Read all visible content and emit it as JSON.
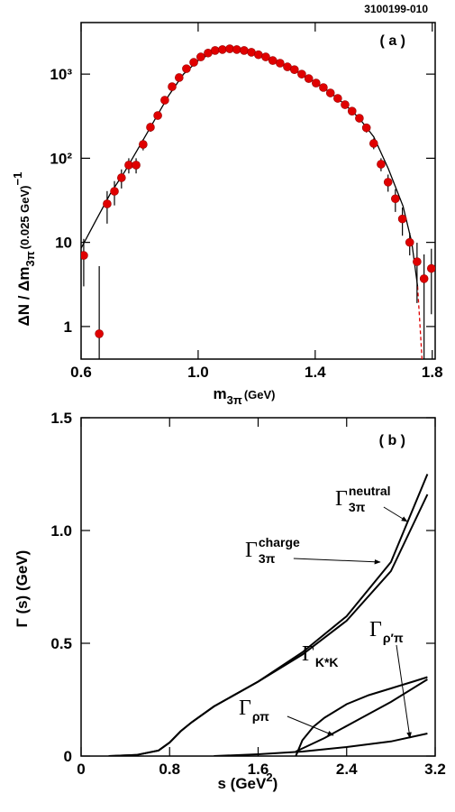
{
  "chart_data": [
    {
      "type": "scatter",
      "figure_id": "3100199-010",
      "annotation": "( a )",
      "x_label": {
        "main": "m",
        "sub": "3π",
        "rest": "(GeV)"
      },
      "y_label": {
        "main": "ΔN / Δm",
        "sub": "3π",
        "rest": "(0.025 GeV)",
        "sup": "−1"
      },
      "log_y": true,
      "xlim": [
        0.6,
        1.81
      ],
      "ylim": [
        0.41,
        4100
      ],
      "xticks": [
        0.6,
        {
          "value": 1,
          "label": "1.0"
        },
        1.4,
        1.8
      ],
      "yticks": [
        1,
        10,
        {
          "value": 100,
          "label": "10²"
        },
        {
          "value": 1000,
          "label": "10³"
        }
      ],
      "color": "#e00000",
      "x": [
        0.609,
        0.662,
        0.689,
        0.714,
        0.738,
        0.763,
        0.788,
        0.812,
        0.837,
        0.862,
        0.886,
        0.911,
        0.935,
        0.96,
        0.985,
        1.009,
        1.034,
        1.058,
        1.083,
        1.108,
        1.132,
        1.157,
        1.182,
        1.206,
        1.231,
        1.255,
        1.28,
        1.305,
        1.329,
        1.354,
        1.378,
        1.403,
        1.428,
        1.452,
        1.477,
        1.502,
        1.526,
        1.551,
        1.575,
        1.6,
        1.625,
        1.649,
        1.674,
        1.698,
        1.723,
        1.748,
        1.772,
        1.797
      ],
      "values": [
        7,
        0.82,
        28.7,
        40.5,
        58.7,
        83,
        83,
        146,
        234,
        322,
        490,
        709,
        910,
        1160,
        1380,
        1600,
        1780,
        1910,
        1960,
        2000,
        1960,
        1910,
        1820,
        1700,
        1600,
        1450,
        1350,
        1220,
        1130,
        1000,
        885,
        783,
        693,
        597,
        515,
        433,
        363,
        299,
        230,
        150,
        85,
        52,
        33,
        19,
        10,
        5.9,
        3.7,
        4.9
      ],
      "errors": [
        4,
        4.4,
        12,
        13,
        15,
        17,
        17,
        22,
        28,
        32,
        40,
        48,
        55,
        60,
        65,
        70,
        75,
        75,
        75,
        75,
        75,
        75,
        72,
        70,
        70,
        65,
        65,
        60,
        60,
        55,
        52,
        50,
        46,
        43,
        40,
        37,
        34,
        30,
        28,
        22,
        15,
        12,
        10,
        7,
        3,
        4,
        3.5,
        3.5
      ],
      "curves": [
        {
          "color": "#000000",
          "x": [
            0.6,
            0.65,
            0.7,
            0.75,
            0.8,
            0.85,
            0.9,
            0.95,
            1.0,
            1.05,
            1.1,
            1.15,
            1.2,
            1.25,
            1.3,
            1.35,
            1.4,
            1.45,
            1.5,
            1.55,
            1.6,
            1.65,
            1.7,
            1.73,
            1.75
          ],
          "values": [
            8.5,
            18,
            38,
            70,
            140,
            280,
            560,
            1000,
            1450,
            1800,
            1980,
            1950,
            1750,
            1500,
            1250,
            1020,
            800,
            610,
            440,
            300,
            180,
            75,
            27,
            10,
            3
          ]
        },
        {
          "color": "#e00000",
          "dashed": true,
          "x": [
            1.75,
            1.765
          ],
          "values": [
            3,
            0.41
          ]
        }
      ]
    },
    {
      "type": "line",
      "annotation": "( b )",
      "x_label": {
        "main": "s (GeV",
        "sup": "2",
        "rest": ")"
      },
      "y_label": "Γ (s) (GeV)",
      "xlim": [
        0,
        3.2
      ],
      "ylim": [
        0,
        1.5
      ],
      "xticks": [
        0,
        0.8,
        1.6,
        2.4,
        3.2
      ],
      "yticks": [
        0,
        0.5,
        {
          "value": 1,
          "label": "1.0"
        },
        1.5
      ],
      "series": [
        {
          "name": "Γ",
          "subscript": "3π",
          "superscript": "neutral",
          "color": "#000000",
          "x": [
            0.25,
            0.5,
            0.7,
            0.8,
            0.9,
            1.0,
            1.2,
            1.6,
            2.0,
            2.4,
            2.8,
            3.13
          ],
          "values": [
            0,
            0.005,
            0.025,
            0.06,
            0.11,
            0.15,
            0.22,
            0.33,
            0.46,
            0.62,
            0.86,
            1.25
          ]
        },
        {
          "name": "Γ",
          "subscript": "3π",
          "superscript": "charge",
          "color": "#000000",
          "x": [
            0.25,
            0.5,
            0.7,
            0.8,
            0.9,
            1.0,
            1.2,
            1.6,
            2.0,
            2.4,
            2.8,
            3.13
          ],
          "values": [
            0,
            0.005,
            0.025,
            0.06,
            0.11,
            0.15,
            0.22,
            0.33,
            0.45,
            0.6,
            0.82,
            1.16
          ]
        },
        {
          "name": "Γ",
          "subscript": "K*K",
          "color": "#000000",
          "x": [
            1.94,
            2.0,
            2.1,
            2.2,
            2.4,
            2.6,
            2.8,
            3.0,
            3.13
          ],
          "values": [
            0,
            0.07,
            0.13,
            0.17,
            0.23,
            0.27,
            0.3,
            0.33,
            0.35
          ]
        },
        {
          "name": "Γ",
          "subscript": "ρπ",
          "color": "#000000",
          "x": [
            1.94,
            2.2,
            2.5,
            2.8,
            3.13
          ],
          "values": [
            0.02,
            0.08,
            0.16,
            0.24,
            0.34
          ]
        },
        {
          "name": "Γ",
          "subscript": "ρ′π",
          "color": "#000000",
          "x": [
            1.2,
            1.6,
            2.0,
            2.4,
            2.8,
            3.13
          ],
          "values": [
            0,
            0.008,
            0.02,
            0.04,
            0.065,
            0.1
          ]
        }
      ]
    }
  ]
}
